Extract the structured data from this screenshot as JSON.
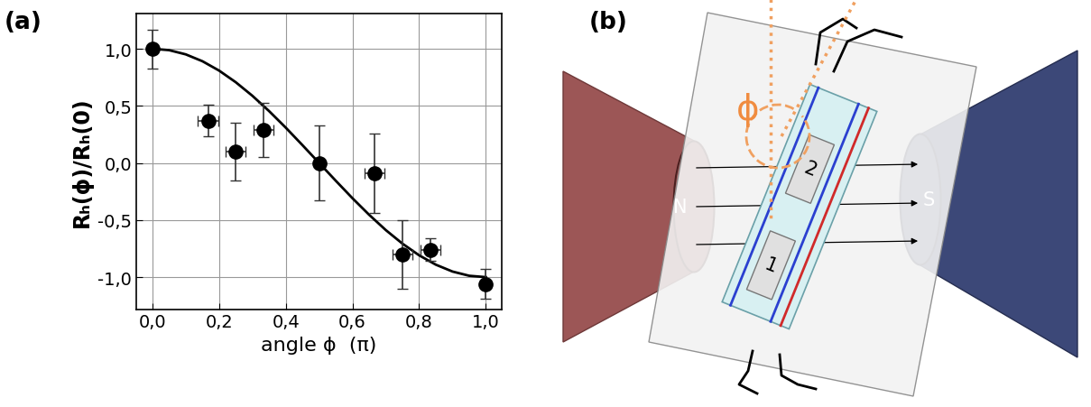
{
  "chart_data": {
    "type": "scatter",
    "x_label": "angle ϕ  (π)",
    "y_label": "Rₕ(ϕ)/Rₕ(0)",
    "xlim": [
      -0.048,
      1.048
    ],
    "ylim": [
      -1.28,
      1.31
    ],
    "xticks": [
      {
        "value": 0.0,
        "label": "0,0"
      },
      {
        "value": 0.2,
        "label": "0,2"
      },
      {
        "value": 0.4,
        "label": "0,4"
      },
      {
        "value": 0.6,
        "label": "0,6"
      },
      {
        "value": 0.8,
        "label": "0,8"
      },
      {
        "value": 1.0,
        "label": "1,0"
      }
    ],
    "yticks": [
      {
        "value": -1.0,
        "label": "-1,0"
      },
      {
        "value": -0.5,
        "label": "-0,5"
      },
      {
        "value": 0.0,
        "label": "0,0"
      },
      {
        "value": 0.5,
        "label": "0,5"
      },
      {
        "value": 1.0,
        "label": "1,0"
      }
    ],
    "grid": true,
    "series": [
      {
        "type": "line",
        "color": "#000000",
        "line_style": "solid",
        "x": [
          0.0,
          0.05,
          0.1,
          0.15,
          0.2,
          0.25,
          0.3,
          0.35,
          0.4,
          0.45,
          0.5,
          0.55,
          0.6,
          0.65,
          0.7,
          0.75,
          0.8,
          0.85,
          0.9,
          0.95,
          1.0
        ],
        "values": [
          1.0,
          0.988,
          0.951,
          0.891,
          0.809,
          0.707,
          0.588,
          0.454,
          0.309,
          0.156,
          0.0,
          -0.156,
          -0.309,
          -0.454,
          -0.588,
          -0.707,
          -0.809,
          -0.891,
          -0.951,
          -0.988,
          -1.0
        ]
      },
      {
        "type": "scatter",
        "color": "#000000",
        "marker": "circle",
        "x": [
          0.0,
          0.167,
          0.25,
          0.333,
          0.5,
          0.667,
          0.75,
          0.833,
          1.0
        ],
        "values": [
          1.0,
          0.37,
          0.1,
          0.29,
          0.0,
          -0.09,
          -0.8,
          -0.76,
          -1.06
        ],
        "y_error": [
          0.17,
          0.14,
          0.25,
          0.24,
          0.33,
          0.35,
          0.3,
          0.1,
          0.13
        ],
        "x_error": [
          0.0,
          0.03,
          0.03,
          0.03,
          0.0,
          0.03,
          0.03,
          0.03,
          0.0
        ]
      }
    ]
  },
  "panel_labels": [
    "(a)",
    "(b)"
  ],
  "diagram": {
    "magnets": [
      "N",
      "S"
    ],
    "contacts": [
      "1",
      "2"
    ],
    "angle": "ϕ"
  }
}
